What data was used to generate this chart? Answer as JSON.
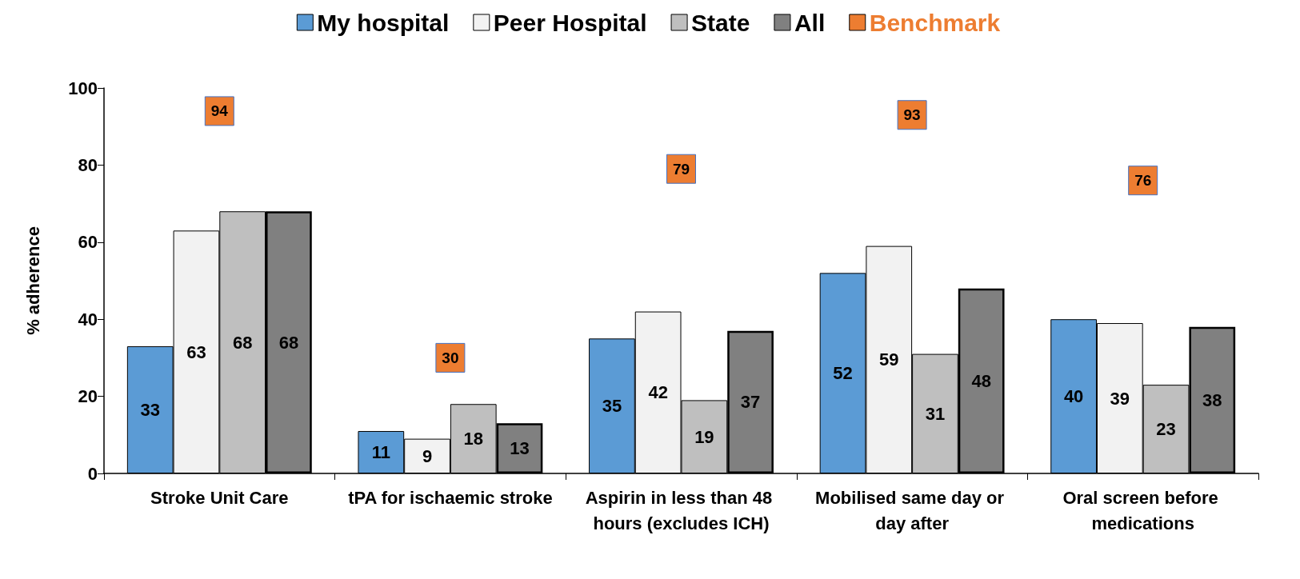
{
  "chart_data": {
    "type": "bar",
    "ylabel": "% adherence",
    "categories": [
      "Stroke Unit Care",
      "tPA for ischaemic stroke",
      "Aspirin in less than 48 hours (excludes ICH)",
      "Mobilised same day or day after",
      "Oral screen before medications"
    ],
    "series": [
      {
        "name": "My hospital",
        "color": "#5b9bd5",
        "values": [
          33,
          11,
          35,
          52,
          40
        ]
      },
      {
        "name": "Peer Hospital",
        "color": "#f2f2f2",
        "values": [
          63,
          9,
          42,
          59,
          39
        ]
      },
      {
        "name": "State",
        "color": "#bfbfbf",
        "values": [
          68,
          18,
          19,
          31,
          23
        ]
      },
      {
        "name": "All",
        "color": "#808080",
        "values": [
          68,
          13,
          37,
          48,
          38
        ]
      },
      {
        "name": "Benchmark",
        "type": "scatter",
        "marker": "square",
        "color": "#ed7d31",
        "values": [
          94,
          30,
          79,
          93,
          76
        ]
      }
    ],
    "ylim": [
      0,
      100
    ],
    "yticks": [
      0,
      20,
      40,
      60,
      80,
      100
    ],
    "grid": false,
    "legend": "top",
    "data_labels": true
  }
}
